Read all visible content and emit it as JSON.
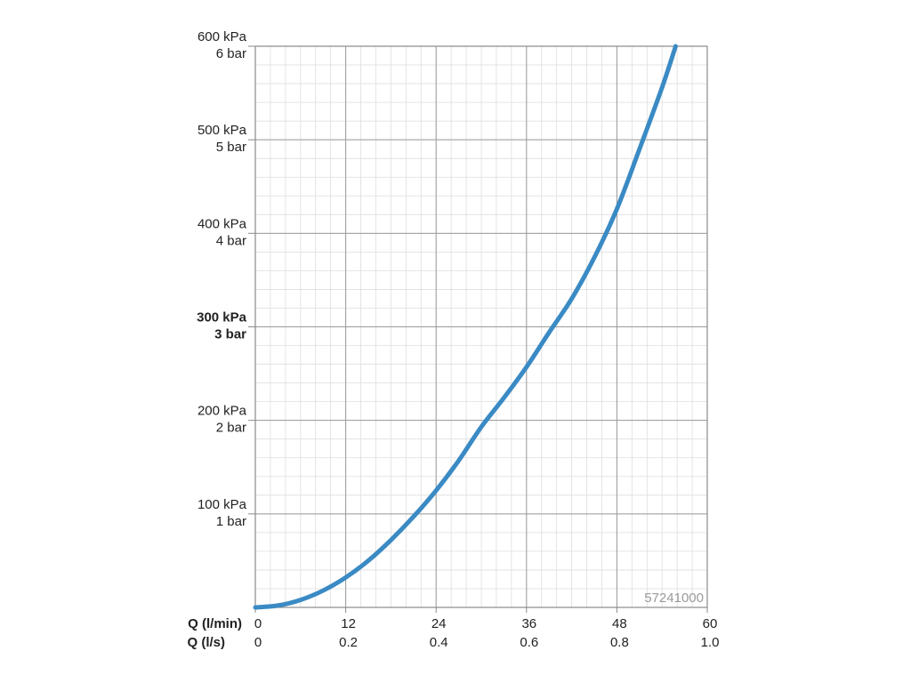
{
  "chart_data": {
    "type": "line",
    "code_label": "57241000",
    "x_primary_label": "Q (l/min)",
    "x_secondary_label": "Q (l/s)",
    "x_ticks_primary": [
      "0",
      "12",
      "24",
      "36",
      "48",
      "60"
    ],
    "x_ticks_secondary": [
      "0",
      "0.2",
      "0.4",
      "0.6",
      "0.8",
      "1.0"
    ],
    "xlim": [
      0,
      60
    ],
    "y_ticks": [
      {
        "value": 100,
        "kpa": "100 kPa",
        "bar": "1 bar",
        "bold": false
      },
      {
        "value": 200,
        "kpa": "200 kPa",
        "bar": "2 bar",
        "bold": false
      },
      {
        "value": 300,
        "kpa": "300 kPa",
        "bar": "3 bar",
        "bold": true
      },
      {
        "value": 400,
        "kpa": "400 kPa",
        "bar": "4 bar",
        "bold": false
      },
      {
        "value": 500,
        "kpa": "500 kPa",
        "bar": "5 bar",
        "bold": false
      },
      {
        "value": 600,
        "kpa": "600 kPa",
        "bar": "6 bar",
        "bold": false
      }
    ],
    "ylim": [
      0,
      600
    ],
    "grid": true,
    "series": [
      {
        "color": "#3a8ac4",
        "x": [
          0,
          3,
          6,
          9,
          12,
          15,
          18,
          21,
          24,
          27,
          30,
          33,
          36,
          39,
          42,
          45,
          48,
          51,
          54,
          55.8
        ],
        "y": [
          0,
          2,
          8,
          18,
          32,
          50,
          72,
          97,
          125,
          157,
          193,
          224,
          257,
          294,
          330,
          374,
          426,
          490,
          556,
          600
        ]
      }
    ]
  }
}
